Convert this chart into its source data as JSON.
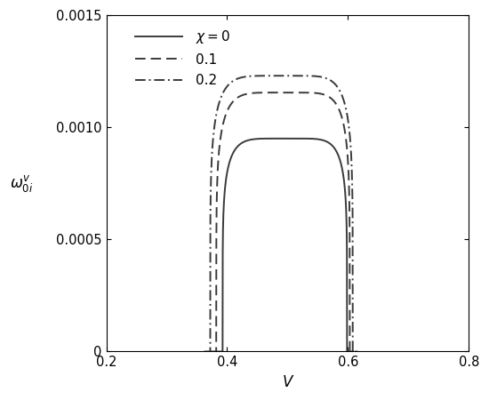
{
  "xlim": [
    0.2,
    0.8
  ],
  "ylim": [
    0,
    0.0015
  ],
  "xlabel": "V",
  "ylabel": "$\\omega_{0i}^{v}$",
  "xticks": [
    0.2,
    0.4,
    0.6,
    0.8
  ],
  "ytick_values": [
    0,
    0.0005,
    0.001,
    0.0015
  ],
  "ytick_labels": [
    "0",
    "0.0005",
    "0.0010",
    "0.0015"
  ],
  "curves": [
    {
      "label": "$\\chi = 0$",
      "linestyle": "solid",
      "color": "#3a3a3a",
      "linewidth": 1.4,
      "V_start": 0.3925,
      "V_end": 0.5985,
      "V_peak": 0.499,
      "peak": 0.00095,
      "sharpness": 6.0
    },
    {
      "label": "0.1",
      "linestyle": "dashed",
      "color": "#3a3a3a",
      "linewidth": 1.4,
      "V_start": 0.382,
      "V_end": 0.603,
      "V_peak": 0.497,
      "peak": 0.001155,
      "sharpness": 6.0
    },
    {
      "label": "0.2",
      "linestyle": "dashdot",
      "color": "#3a3a3a",
      "linewidth": 1.4,
      "V_start": 0.372,
      "V_end": 0.608,
      "V_peak": 0.494,
      "peak": 0.00123,
      "sharpness": 6.0
    }
  ],
  "legend_labels": [
    "$\\chi = 0$",
    "0.1",
    "0.2"
  ],
  "legend_linestyles": [
    "solid",
    "dashed",
    "dashdot"
  ],
  "figsize": [
    5.5,
    4.5
  ],
  "dpi": 100
}
